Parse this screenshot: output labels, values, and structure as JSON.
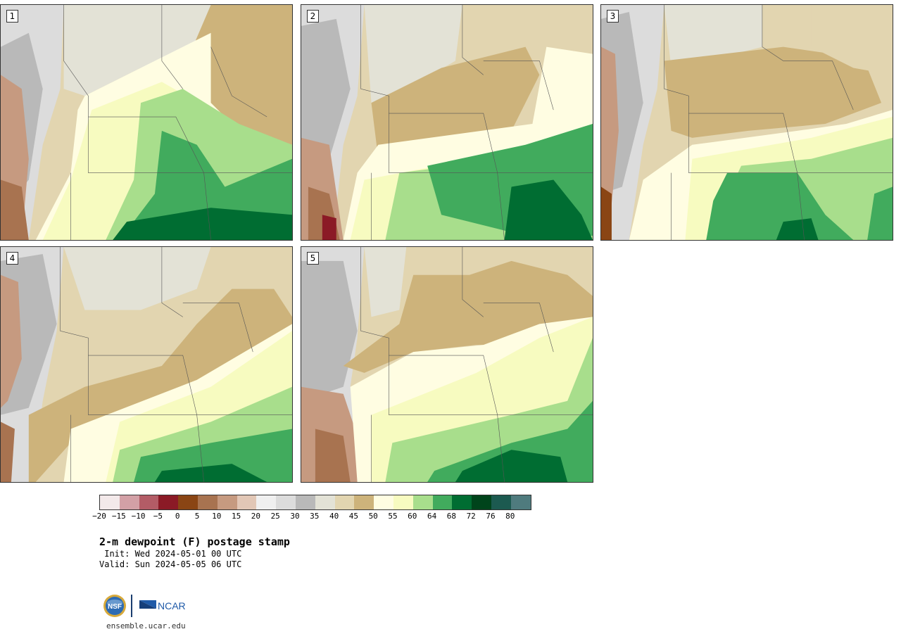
{
  "panels": [
    {
      "label": "1"
    },
    {
      "label": "2"
    },
    {
      "label": "3"
    },
    {
      "label": "4"
    },
    {
      "label": "5"
    }
  ],
  "colorbar": {
    "colors": [
      "#f3e9ea",
      "#d3a0a6",
      "#b35c66",
      "#8b1a26",
      "#8a4514",
      "#a87350",
      "#c69a80",
      "#e2c7b6",
      "#f0f0f0",
      "#dcdcdc",
      "#b9b9b9",
      "#e3e2d6",
      "#e2d5b0",
      "#cdb37b",
      "#fffde2",
      "#f7fbc0",
      "#a8de8c",
      "#41ab5d",
      "#006d32",
      "#00441b",
      "#1c5a50",
      "#4f7b7e"
    ],
    "ticks": [
      "−20",
      "−15",
      "−10",
      "−5",
      "0",
      "5",
      "10",
      "15",
      "20",
      "25",
      "30",
      "35",
      "40",
      "45",
      "50",
      "55",
      "60",
      "64",
      "68",
      "72",
      "76",
      "80"
    ]
  },
  "title": "2-m dewpoint (F) postage stamp",
  "init": " Init: Wed 2024-05-01 00 UTC",
  "valid": "Valid: Sun 2024-05-05 06 UTC",
  "logos": {
    "nsf": "NSF",
    "ncar": "NCAR"
  },
  "site": "ensemble.ucar.edu"
}
